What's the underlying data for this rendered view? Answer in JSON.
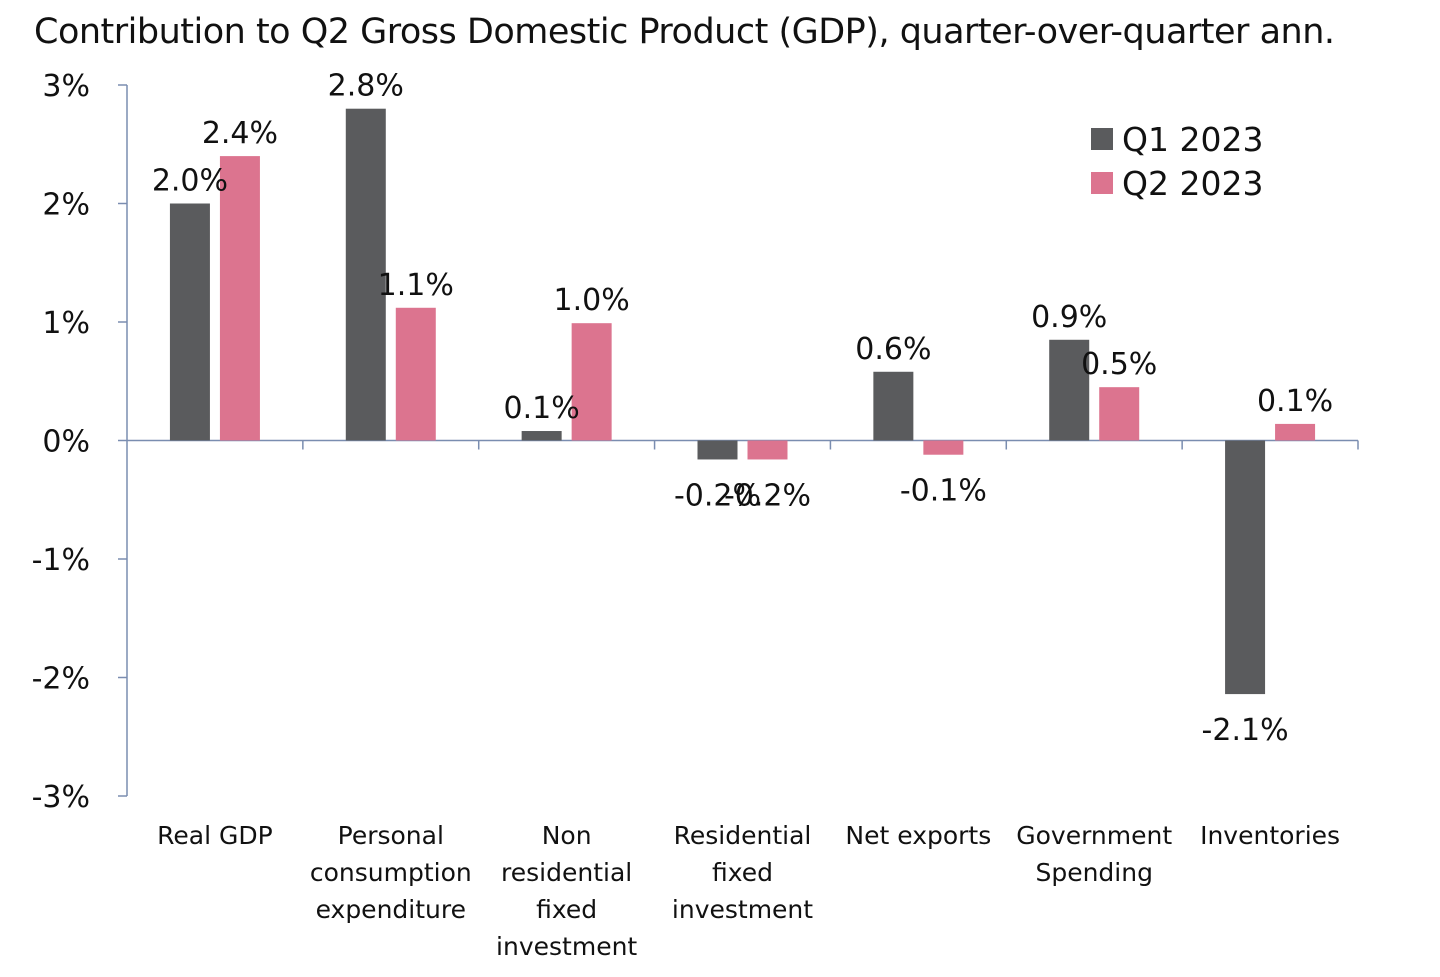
{
  "title": "Contribution to Q2 Gross Domestic Product (GDP), quarter-over-quarter ann.",
  "colors": {
    "q1": "#5a5b5d",
    "q2": "#dc748f",
    "axis": "#7a8db0"
  },
  "chart_data": {
    "type": "bar",
    "title": "Contribution to Q2 Gross Domestic Product (GDP), quarter-over-quarter ann.",
    "xlabel": "",
    "ylabel": "",
    "ylim": [
      -3,
      3
    ],
    "yticks": [
      3,
      2,
      1,
      0,
      -1,
      -2,
      -3
    ],
    "ytick_labels": [
      "3%",
      "2%",
      "1%",
      "0%",
      "-1%",
      "-2%",
      "-3%"
    ],
    "legend_position": "top-right",
    "grid": false,
    "categories": [
      [
        "Real GDP"
      ],
      [
        "Personal",
        "consumption",
        "expenditure"
      ],
      [
        "Non",
        "residential",
        "fixed",
        "investment"
      ],
      [
        "Residential",
        "fixed",
        "investment"
      ],
      [
        "Net exports"
      ],
      [
        "Government",
        "Spending"
      ],
      [
        "Inventories"
      ]
    ],
    "series": [
      {
        "name": "Q1 2023",
        "color_key": "q1",
        "values": [
          2.0,
          2.8,
          0.08,
          -0.16,
          0.58,
          0.85,
          -2.14
        ],
        "labels": [
          "2.0%",
          "2.8%",
          "0.1%",
          "-0.2%",
          "0.6%",
          "0.9%",
          "-2.1%"
        ]
      },
      {
        "name": "Q2 2023",
        "color_key": "q2",
        "values": [
          2.4,
          1.12,
          0.99,
          -0.16,
          -0.12,
          0.45,
          0.14
        ],
        "labels": [
          "2.4%",
          "1.1%",
          "1.0%",
          "-0.2%",
          "-0.1%",
          "0.5%",
          "0.1%"
        ]
      }
    ]
  }
}
